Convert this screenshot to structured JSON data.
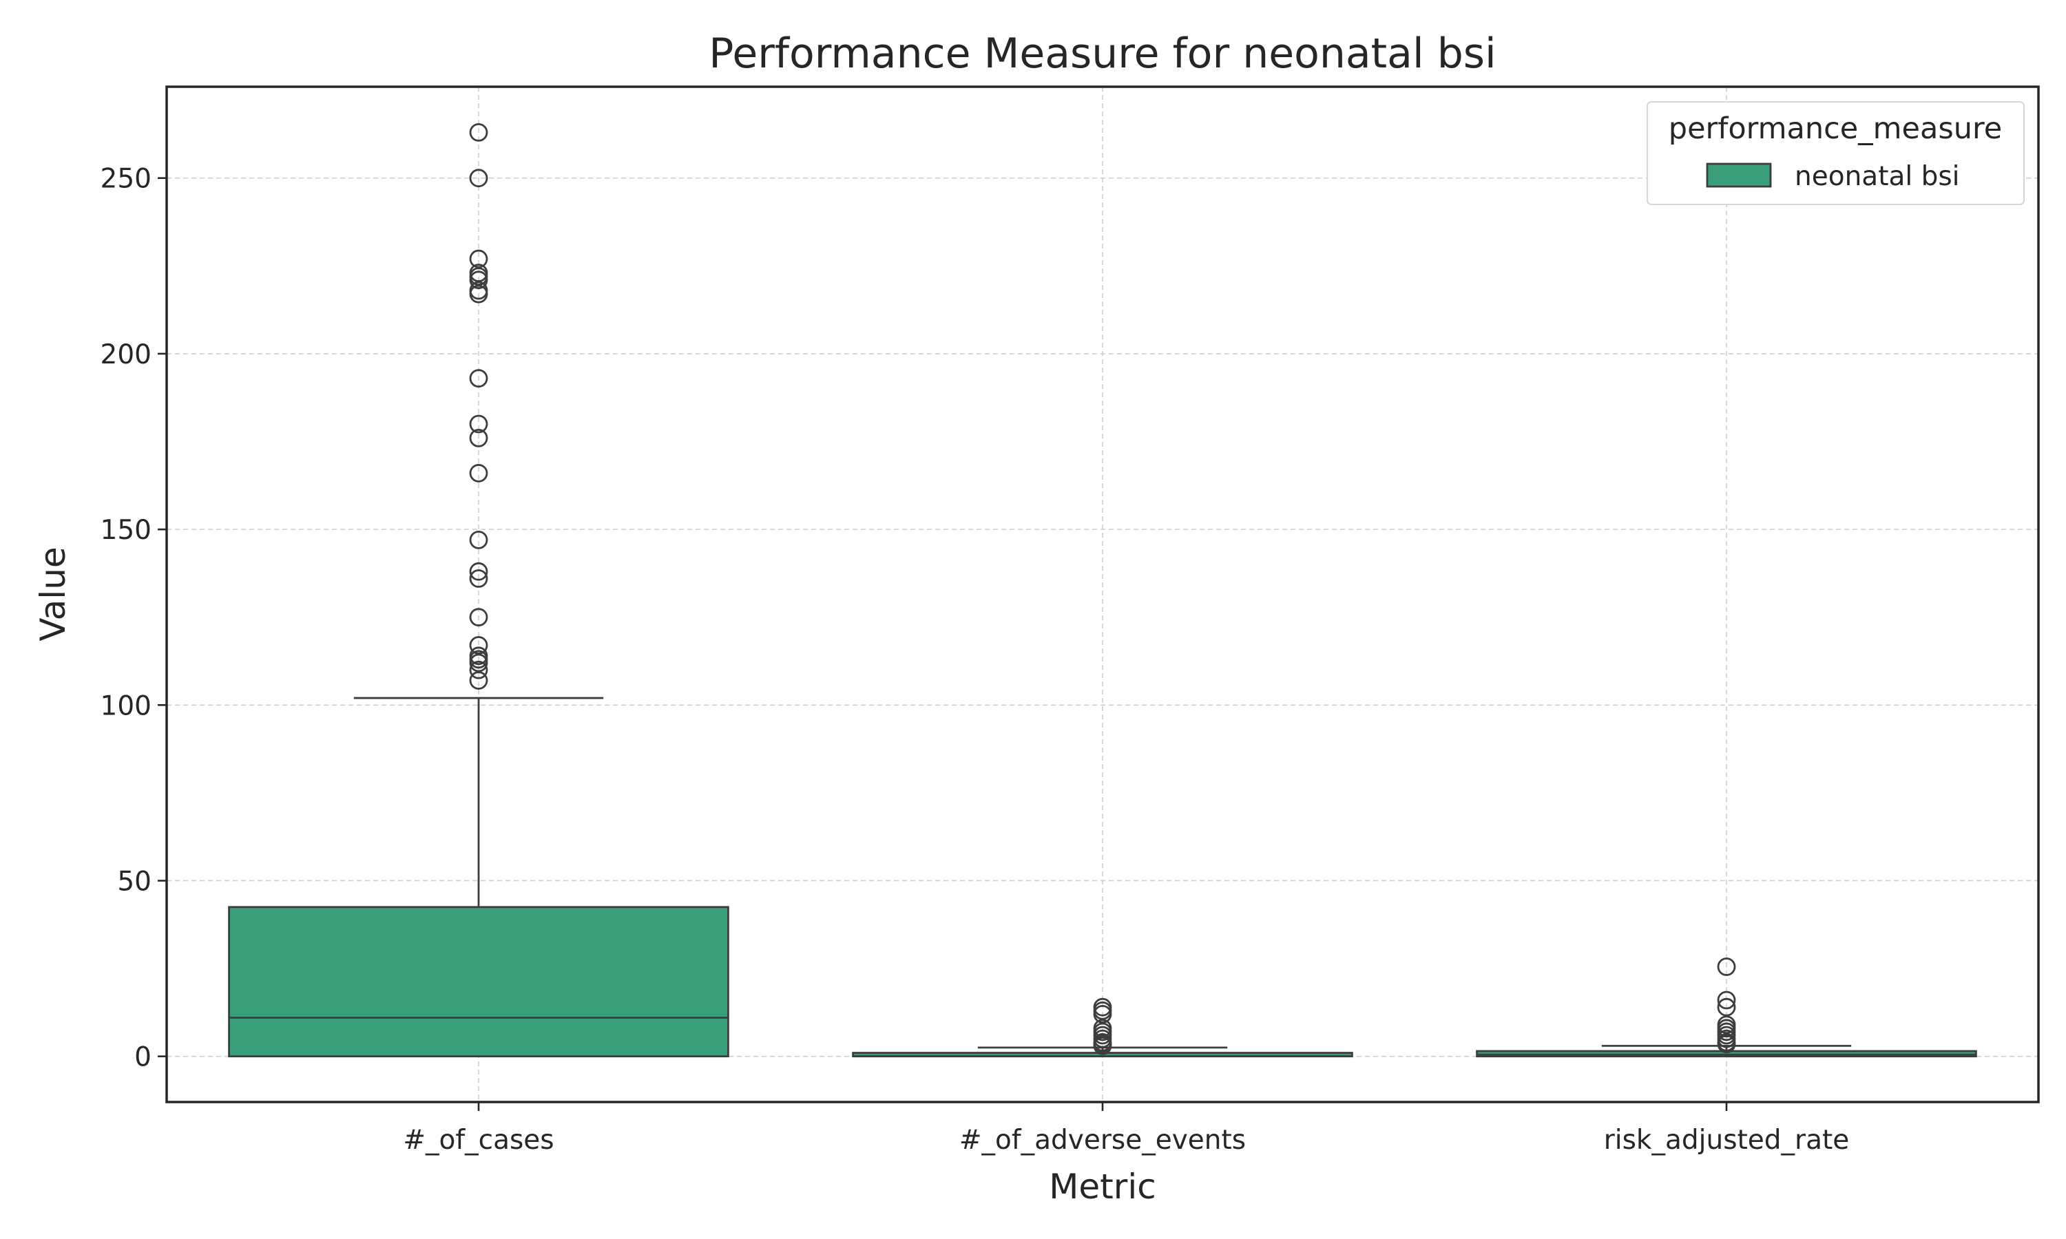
{
  "chart_data": {
    "type": "box",
    "title": "Performance Measure for neonatal bsi",
    "xlabel": "Metric",
    "ylabel": "Value",
    "categories": [
      "#_of_cases",
      "#_of_adverse_events",
      "risk_adjusted_rate"
    ],
    "ylim": [
      -13,
      276
    ],
    "yticks": [
      0,
      50,
      100,
      150,
      200,
      250
    ],
    "grid": true,
    "legend": {
      "title": "performance_measure",
      "placement": "top-right",
      "entries": [
        "neonatal bsi"
      ]
    },
    "series": [
      {
        "name": "neonatal bsi",
        "color": "#3a9e7a",
        "boxes": [
          {
            "category": "#_of_cases",
            "whisker_low": 0,
            "q1": 0,
            "median": 11,
            "q3": 42.5,
            "whisker_high": 102,
            "outliers": [
              107,
              110,
              112,
              113,
              114,
              117,
              125,
              136,
              138,
              147,
              166,
              176,
              180,
              193,
              217,
              218,
              221,
              222,
              223,
              227,
              250,
              263
            ]
          },
          {
            "category": "#_of_adverse_events",
            "whisker_low": 0,
            "q1": 0,
            "median": 0,
            "q3": 1,
            "whisker_high": 2.5,
            "outliers": [
              3,
              3.5,
              4,
              5,
              6,
              7,
              8,
              12,
              13,
              14
            ]
          },
          {
            "category": "risk_adjusted_rate",
            "whisker_low": 0,
            "q1": 0,
            "median": 0.5,
            "q3": 1.5,
            "whisker_high": 3,
            "outliers": [
              3.5,
              4,
              5,
              6,
              7,
              8,
              9,
              14,
              16,
              25.5
            ]
          }
        ]
      }
    ]
  }
}
